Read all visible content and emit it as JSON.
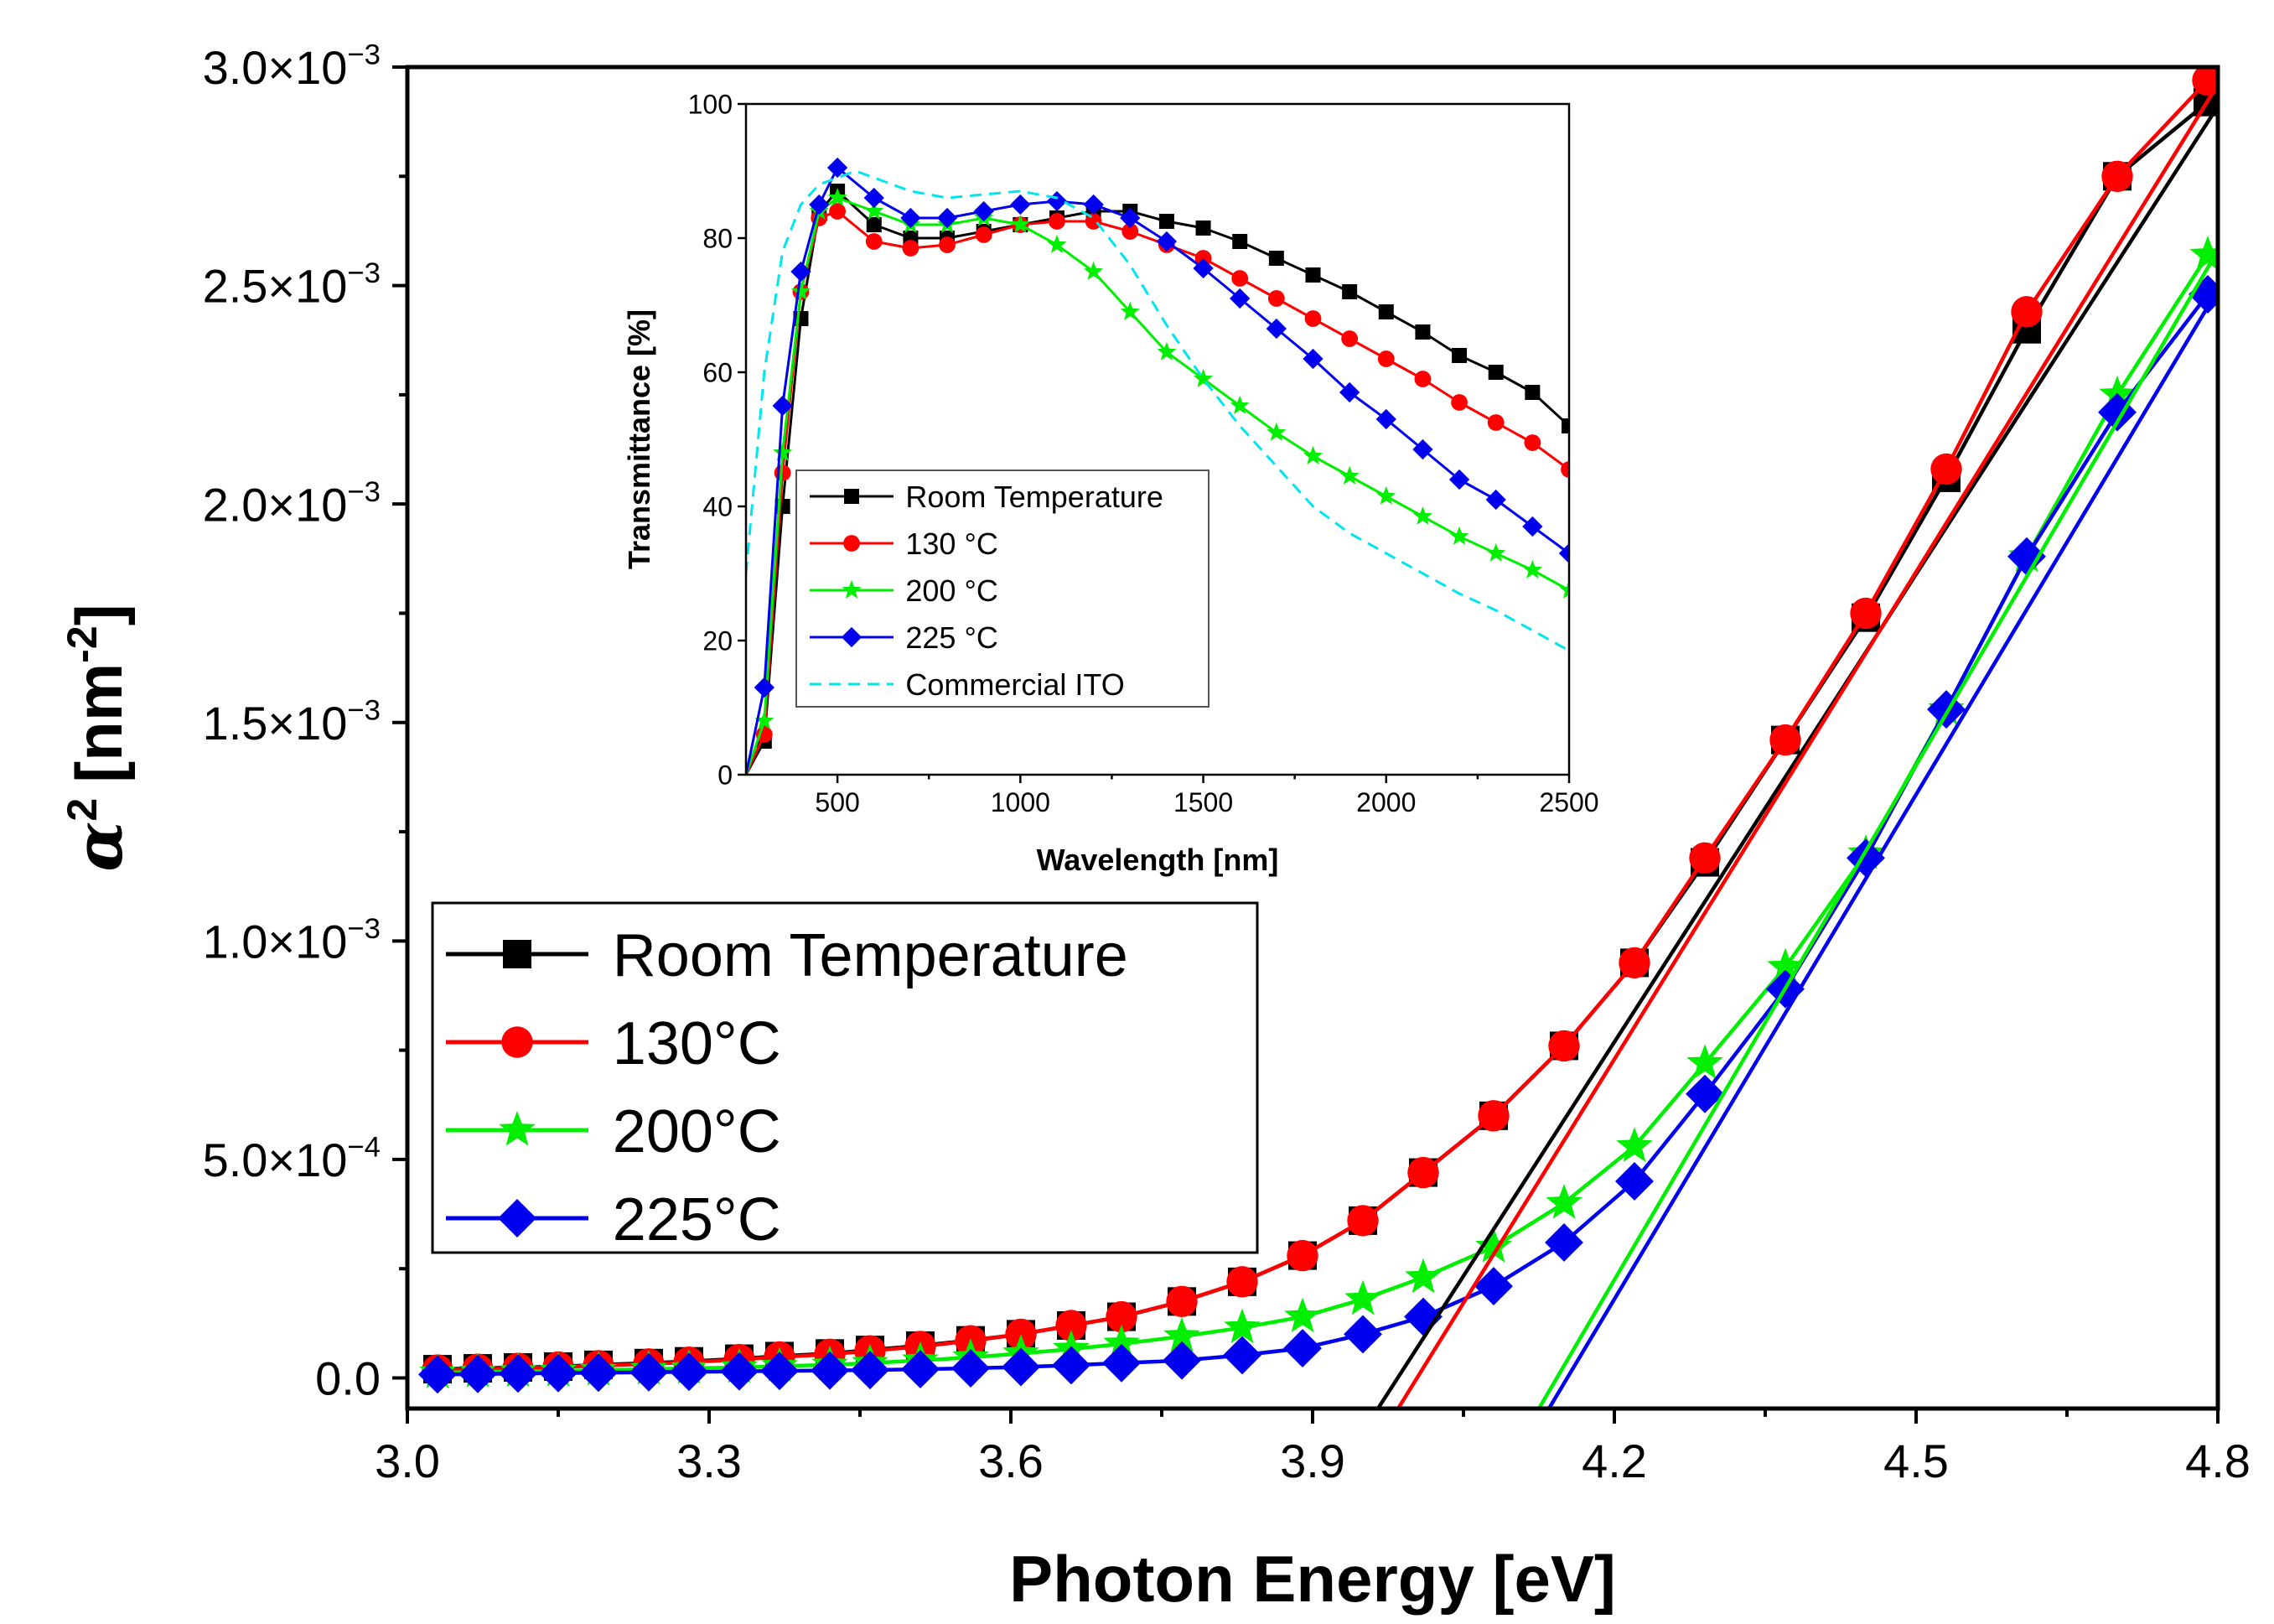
{
  "chart_data": [
    {
      "type": "line",
      "id": "main",
      "title": "",
      "xlabel": "Photon Energy [eV]",
      "ylabel_base": "α",
      "ylabel_sup": "2",
      "ylabel_unit": "[nm",
      "ylabel_unit_sup": "-2",
      "ylabel_close": "]",
      "xlim": [
        3.0,
        4.8
      ],
      "ylim": [
        -7e-05,
        0.003
      ],
      "xticks": [
        3.0,
        3.3,
        3.6,
        3.9,
        4.2,
        4.5,
        4.8
      ],
      "xtick_labels": [
        "3.0",
        "3.3",
        "3.6",
        "3.9",
        "4.2",
        "4.5",
        "4.8"
      ],
      "yticks": [
        0,
        0.0005,
        0.001,
        0.0015,
        0.002,
        0.0025,
        0.003
      ],
      "ytick_labels": [
        {
          "mant": "0.0",
          "exp": ""
        },
        {
          "mant": "5.0×10",
          "exp": "−4"
        },
        {
          "mant": "1.0×10",
          "exp": "−3"
        },
        {
          "mant": "1.5×10",
          "exp": "−3"
        },
        {
          "mant": "2.0×10",
          "exp": "−3"
        },
        {
          "mant": "2.5×10",
          "exp": "−3"
        },
        {
          "mant": "3.0×10",
          "exp": "−3"
        }
      ],
      "legend": {
        "placement": "lower-left",
        "entries": [
          "Room Temperature",
          "130°C",
          "200°C",
          "225°C"
        ]
      },
      "series": [
        {
          "name": "Room Temperature",
          "color": "#000000",
          "marker": "square",
          "x": [
            3.03,
            3.07,
            3.11,
            3.15,
            3.19,
            3.24,
            3.28,
            3.33,
            3.37,
            3.42,
            3.46,
            3.51,
            3.56,
            3.61,
            3.66,
            3.71,
            3.77,
            3.83,
            3.89,
            3.95,
            4.01,
            4.08,
            4.15,
            4.22,
            4.29,
            4.37,
            4.45,
            4.53,
            4.61,
            4.7,
            4.79
          ],
          "y": [
            2e-05,
            2.2e-05,
            2.4e-05,
            2.6e-05,
            3e-05,
            3.4e-05,
            3.8e-05,
            4.4e-05,
            5e-05,
            5.6e-05,
            6.4e-05,
            7.4e-05,
            8.6e-05,
            0.0001,
            0.00012,
            0.00014,
            0.000175,
            0.00022,
            0.00028,
            0.00036,
            0.00047,
            0.0006,
            0.00076,
            0.00095,
            0.00118,
            0.00146,
            0.00174,
            0.00206,
            0.0024,
            0.00275,
            0.00292
          ]
        },
        {
          "name": "130°C",
          "color": "#ff0000",
          "marker": "circle",
          "x": [
            3.03,
            3.07,
            3.11,
            3.15,
            3.19,
            3.24,
            3.28,
            3.33,
            3.37,
            3.42,
            3.46,
            3.51,
            3.56,
            3.61,
            3.66,
            3.71,
            3.77,
            3.83,
            3.89,
            3.95,
            4.01,
            4.08,
            4.15,
            4.22,
            4.29,
            4.37,
            4.45,
            4.53,
            4.61,
            4.7,
            4.79
          ],
          "y": [
            1.8e-05,
            2e-05,
            2.2e-05,
            2.5e-05,
            2.8e-05,
            3.2e-05,
            3.6e-05,
            4.2e-05,
            4.8e-05,
            5.4e-05,
            6.2e-05,
            7.2e-05,
            8.5e-05,
            0.0001,
            0.00012,
            0.00014,
            0.000175,
            0.00022,
            0.00028,
            0.00036,
            0.00047,
            0.0006,
            0.00076,
            0.00095,
            0.00119,
            0.00146,
            0.00175,
            0.00208,
            0.00244,
            0.00275,
            0.00297
          ]
        },
        {
          "name": "200°C",
          "color": "#00ee00",
          "marker": "star",
          "x": [
            3.03,
            3.07,
            3.11,
            3.15,
            3.19,
            3.24,
            3.28,
            3.33,
            3.37,
            3.42,
            3.46,
            3.51,
            3.56,
            3.61,
            3.66,
            3.71,
            3.77,
            3.83,
            3.89,
            3.95,
            4.01,
            4.08,
            4.15,
            4.22,
            4.29,
            4.37,
            4.45,
            4.53,
            4.61,
            4.7,
            4.79
          ],
          "y": [
            1.2e-05,
            1.4e-05,
            1.5e-05,
            1.6e-05,
            1.8e-05,
            2e-05,
            2.2e-05,
            2.4e-05,
            2.7e-05,
            3e-05,
            3.4e-05,
            4e-05,
            4.7e-05,
            5.6e-05,
            6.6e-05,
            7.8e-05,
            9.5e-05,
            0.000115,
            0.00014,
            0.00018,
            0.00023,
            0.0003,
            0.0004,
            0.00053,
            0.00072,
            0.00094,
            0.0012,
            0.00153,
            0.00188,
            0.00225,
            0.00257
          ]
        },
        {
          "name": "225°C",
          "color": "#0000ee",
          "marker": "diamond",
          "x": [
            3.03,
            3.07,
            3.11,
            3.15,
            3.19,
            3.24,
            3.28,
            3.33,
            3.37,
            3.42,
            3.46,
            3.51,
            3.56,
            3.61,
            3.66,
            3.71,
            3.77,
            3.83,
            3.89,
            3.95,
            4.01,
            4.08,
            4.15,
            4.22,
            4.29,
            4.37,
            4.45,
            4.53,
            4.61,
            4.7,
            4.79
          ],
          "y": [
            8e-06,
            9e-06,
            1e-05,
            1.1e-05,
            1.2e-05,
            1.3e-05,
            1.4e-05,
            1.5e-05,
            1.6e-05,
            1.7e-05,
            1.8e-05,
            2e-05,
            2.2e-05,
            2.5e-05,
            2.9e-05,
            3.4e-05,
            4e-05,
            5.2e-05,
            6.8e-05,
            0.0001,
            0.00014,
            0.00021,
            0.00031,
            0.00045,
            0.00065,
            0.00089,
            0.00119,
            0.00153,
            0.00188,
            0.00221,
            0.00248
          ]
        }
      ],
      "fit_lines": [
        {
          "name": "Room Temperature fit",
          "color": "#000000",
          "x": [
            3.965,
            4.8
          ],
          "y": [
            -7e-05,
            0.00291
          ]
        },
        {
          "name": "130°C fit",
          "color": "#ff0000",
          "x": [
            3.985,
            4.8
          ],
          "y": [
            -7e-05,
            0.00296
          ]
        },
        {
          "name": "200°C fit",
          "color": "#00ee00",
          "x": [
            4.125,
            4.8
          ],
          "y": [
            -7e-05,
            0.00258
          ]
        },
        {
          "name": "225°C fit",
          "color": "#0000ee",
          "x": [
            4.135,
            4.8
          ],
          "y": [
            -7e-05,
            0.00249
          ]
        }
      ]
    },
    {
      "type": "line",
      "id": "inset",
      "title": "",
      "xlabel": "Wavelength [nm]",
      "ylabel": "Transmittance [%]",
      "xlim": [
        250,
        2500
      ],
      "ylim": [
        0,
        100
      ],
      "xticks": [
        500,
        1000,
        1500,
        2000,
        2500
      ],
      "xtick_labels": [
        "500",
        "1000",
        "1500",
        "2000",
        "2500"
      ],
      "yticks": [
        0,
        20,
        40,
        60,
        80,
        100
      ],
      "ytick_labels": [
        "0",
        "20",
        "40",
        "60",
        "80",
        "100"
      ],
      "legend": {
        "placement": "bottom-left",
        "entries": [
          "Room Temperature",
          "130 °C",
          "200 °C",
          "225 °C",
          "Commercial ITO"
        ]
      },
      "series": [
        {
          "name": "Room Temperature",
          "color": "#000000",
          "marker": "square",
          "x": [
            250,
            300,
            350,
            400,
            450,
            500,
            600,
            700,
            800,
            900,
            1000,
            1100,
            1200,
            1300,
            1400,
            1500,
            1600,
            1700,
            1800,
            1900,
            2000,
            2100,
            2200,
            2300,
            2400,
            2500
          ],
          "y": [
            0,
            5,
            40,
            68,
            84,
            87,
            82,
            80,
            80,
            81,
            82,
            83,
            84,
            84,
            82.5,
            81.5,
            79.5,
            77,
            74.5,
            72,
            69,
            66,
            62.5,
            60,
            57,
            52
          ]
        },
        {
          "name": "130 °C",
          "color": "#ff0000",
          "marker": "circle",
          "x": [
            250,
            300,
            350,
            400,
            450,
            500,
            600,
            700,
            800,
            900,
            1000,
            1100,
            1200,
            1300,
            1400,
            1500,
            1600,
            1700,
            1800,
            1900,
            2000,
            2100,
            2200,
            2300,
            2400,
            2500
          ],
          "y": [
            0,
            6,
            45,
            72,
            83,
            84,
            79.5,
            78.5,
            79,
            80.5,
            82,
            82.5,
            82.5,
            81,
            79,
            77,
            74,
            71,
            68,
            65,
            62,
            59,
            55.5,
            52.5,
            49.5,
            45.5
          ]
        },
        {
          "name": "200 °C",
          "color": "#00ee00",
          "marker": "star",
          "x": [
            250,
            300,
            350,
            400,
            450,
            500,
            600,
            700,
            800,
            900,
            1000,
            1100,
            1200,
            1300,
            1400,
            1500,
            1600,
            1700,
            1800,
            1900,
            2000,
            2100,
            2200,
            2300,
            2400,
            2500
          ],
          "y": [
            0,
            8,
            48,
            72,
            84,
            86,
            84,
            82,
            82,
            83,
            82,
            79,
            75,
            69,
            63,
            59,
            55,
            51,
            47.5,
            44.5,
            41.5,
            38.5,
            35.5,
            33,
            30.5,
            27.5
          ]
        },
        {
          "name": "225 °C",
          "color": "#0000ee",
          "marker": "diamond",
          "x": [
            250,
            300,
            350,
            400,
            450,
            500,
            600,
            700,
            800,
            900,
            1000,
            1100,
            1200,
            1300,
            1400,
            1500,
            1600,
            1700,
            1800,
            1900,
            2000,
            2100,
            2200,
            2300,
            2400,
            2500
          ],
          "y": [
            0,
            13,
            55,
            75,
            85,
            90.5,
            86,
            83,
            83,
            84,
            85,
            85.5,
            85,
            83,
            79.5,
            75.5,
            71,
            66.5,
            62,
            57,
            53,
            48.5,
            44,
            41,
            37,
            33
          ]
        },
        {
          "name": "Commercial ITO",
          "color": "#00e5ee",
          "marker": "none",
          "dash": true,
          "x": [
            250,
            300,
            350,
            400,
            450,
            500,
            550,
            600,
            700,
            800,
            900,
            1000,
            1100,
            1200,
            1300,
            1400,
            1500,
            1600,
            1700,
            1800,
            1900,
            2000,
            2100,
            2200,
            2300,
            2400,
            2500
          ],
          "y": [
            30,
            60,
            78,
            85,
            88,
            89,
            90,
            89,
            87,
            86,
            86.5,
            87,
            86,
            83,
            76,
            67,
            59,
            52,
            46,
            40,
            36,
            33,
            30,
            27,
            24.5,
            21.5,
            18.5
          ]
        }
      ]
    }
  ]
}
